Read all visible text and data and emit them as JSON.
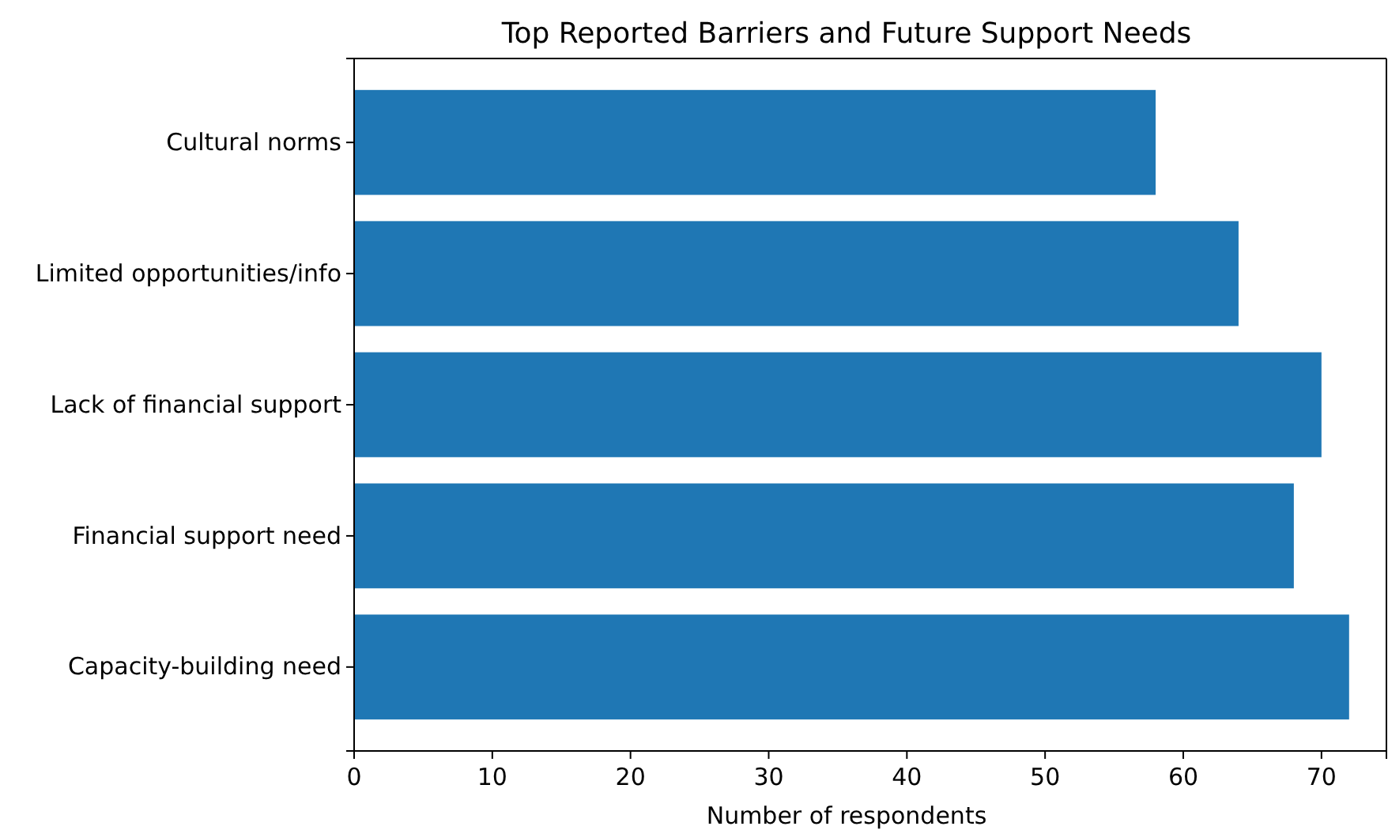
{
  "chart_data": {
    "type": "bar",
    "orientation": "horizontal",
    "title": "Top Reported Barriers and Future Support Needs",
    "xlabel": "Number of respondents",
    "categories": [
      "Cultural norms",
      "Limited opportunities/info",
      "Lack of financial support",
      "Financial support need",
      "Capacity-building need"
    ],
    "values": [
      58,
      64,
      70,
      68,
      72
    ],
    "color": "#1f77b4",
    "xlim": [
      0,
      74.7
    ],
    "xticks": [
      0,
      10,
      20,
      30,
      40,
      50,
      60,
      70
    ],
    "grid": false
  }
}
